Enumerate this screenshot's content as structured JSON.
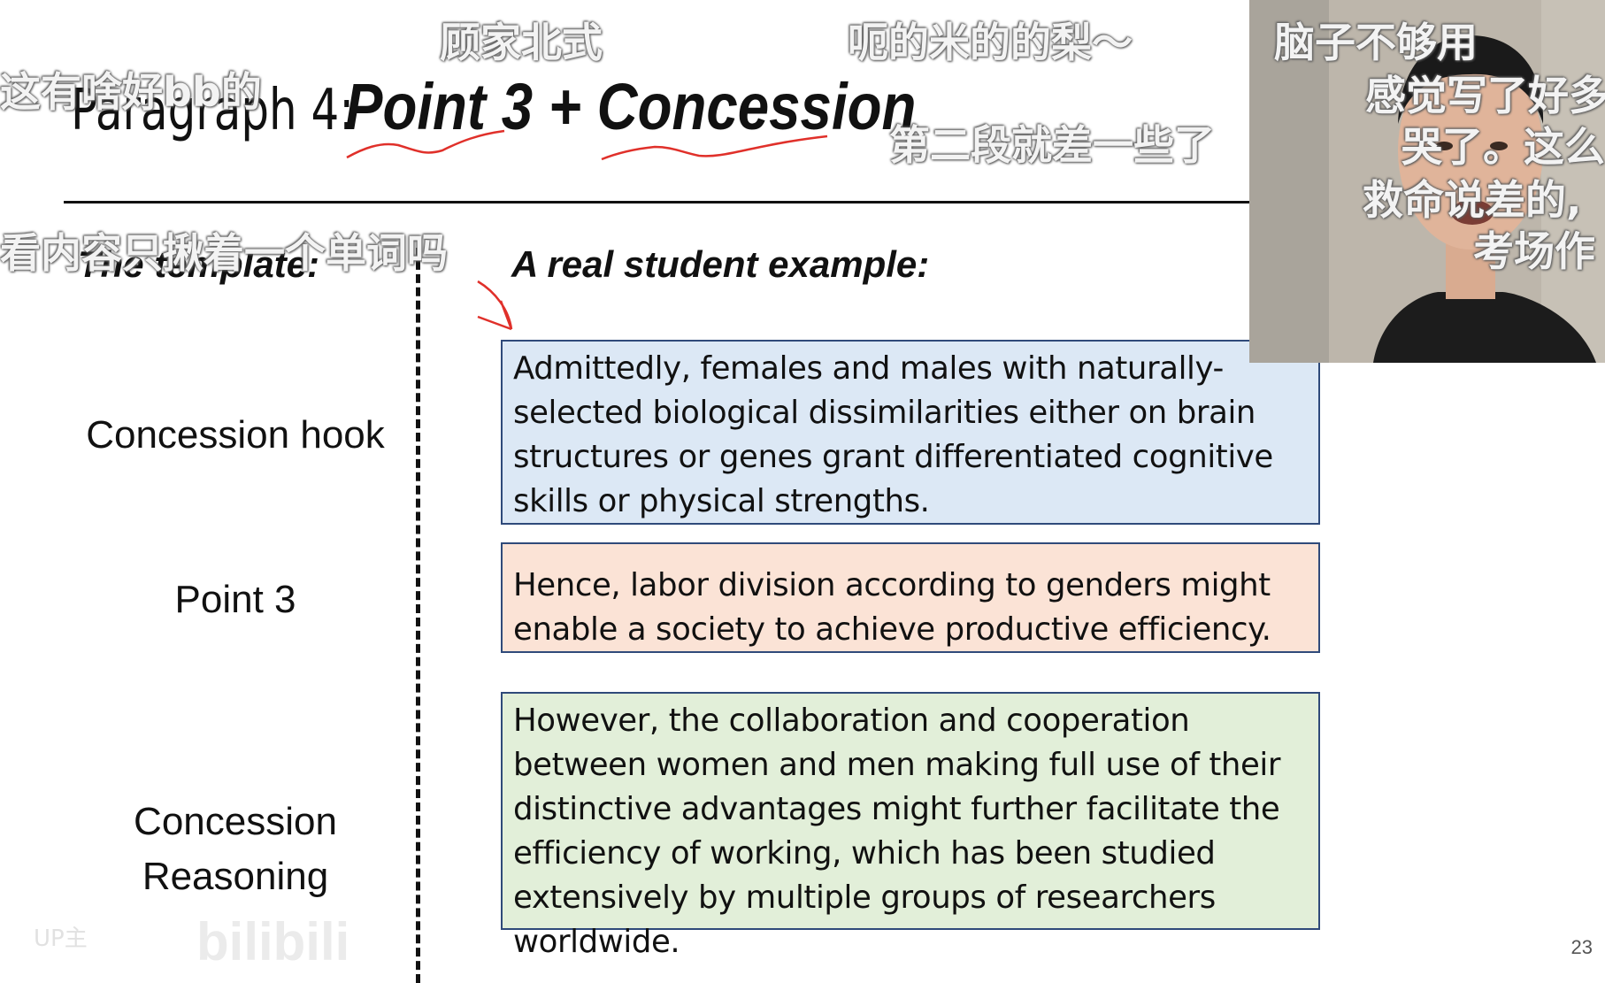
{
  "slide": {
    "title_prefix": "Paragraph 4:",
    "title_emphasis": "Point 3 + Concession",
    "template_heading": "The template:",
    "example_heading": "A real student example:",
    "template_items": [
      "Concession hook",
      "Point 3",
      "Concession",
      "Reasoning"
    ],
    "example_boxes": [
      {
        "text": "Admittedly, females and males with naturally-selected biological dissimilarities either on brain structures or genes grant differentiated cognitive skills or physical strengths.",
        "color": "#dce8f5"
      },
      {
        "text": "Hence, labor division according to genders might enable a society to achieve productive efficiency.",
        "color": "#fbe3d6"
      },
      {
        "text": "However, the collaboration and cooperation between women and men making full use of their distinctive advantages might further facilitate the efficiency of working, which has been studied extensively by multiple groups of researchers worldwide.",
        "color": "#e2efd9"
      }
    ],
    "page_number": "23"
  },
  "danmaku": [
    "顾家北式",
    "呃的米的的梨～",
    "这有啥好bb的",
    "第二段就差一些了",
    "看内容只揪着一个单词吗",
    "脑子不够用",
    "感觉写了好多",
    "哭了。这么",
    "救命说差的,",
    "考场作"
  ],
  "watermark": {
    "uploader": "UP主",
    "brand": "bilibili"
  },
  "accent_colors": {
    "annotation_red": "#e0302a",
    "box_border": "#2f4a7a"
  }
}
